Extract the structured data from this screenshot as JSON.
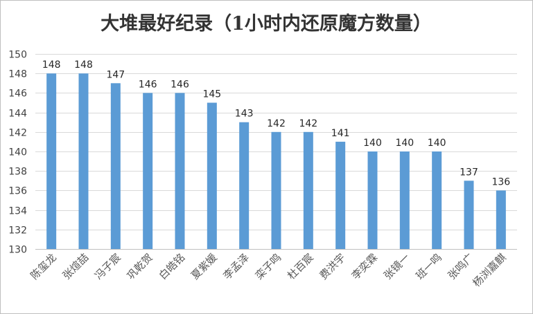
{
  "chart_data": {
    "type": "bar",
    "title": "大堆最好纪录（1小时内还原魔方数量）",
    "categories": [
      "陈玺龙",
      "张煊喆",
      "冯子宸",
      "巩乾贺",
      "白皓铭",
      "夏紫媛",
      "李孟泽",
      "栾子鸣",
      "杜百宸",
      "费洪宇",
      "李奕霖",
      "张镜一",
      "班一鸣",
      "张鸣广",
      "杨浏嘉麒"
    ],
    "values": [
      148,
      148,
      147,
      146,
      146,
      145,
      143,
      142,
      142,
      141,
      140,
      140,
      140,
      137,
      136
    ],
    "ylim": [
      130,
      150
    ],
    "yticks": [
      130,
      132,
      134,
      136,
      138,
      140,
      142,
      144,
      146,
      148,
      150
    ],
    "grid": true,
    "legend": "none",
    "bar_color": "#5b9bd5"
  }
}
